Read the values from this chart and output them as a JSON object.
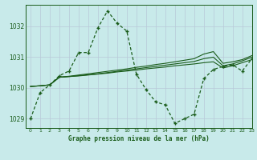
{
  "background_color": "#c8eaea",
  "grid_color": "#b8c8d8",
  "line_color": "#1a5c1a",
  "title": "Graphe pression niveau de la mer (hPa)",
  "xlim": [
    -0.5,
    23
  ],
  "ylim": [
    1028.7,
    1032.7
  ],
  "yticks": [
    1029,
    1030,
    1031,
    1032
  ],
  "xticks": [
    0,
    1,
    2,
    3,
    4,
    5,
    6,
    7,
    8,
    9,
    10,
    11,
    12,
    13,
    14,
    15,
    16,
    17,
    18,
    19,
    20,
    21,
    22,
    23
  ],
  "line1_x": [
    0,
    1,
    2,
    3,
    4,
    5,
    6,
    7,
    8,
    9,
    10,
    11,
    12,
    13,
    14,
    15,
    16,
    17,
    18,
    19,
    20,
    21,
    22,
    23
  ],
  "line1_y": [
    1029.0,
    1029.85,
    1030.1,
    1030.4,
    1030.55,
    1031.15,
    1031.15,
    1031.95,
    1032.5,
    1032.1,
    1031.85,
    1030.45,
    1029.95,
    1029.55,
    1029.45,
    1028.85,
    1029.0,
    1029.15,
    1030.3,
    1030.6,
    1030.7,
    1030.75,
    1030.55,
    1030.95
  ],
  "line2_x": [
    0,
    1,
    2,
    3,
    4,
    5,
    6,
    7,
    8,
    9,
    10,
    11,
    12,
    13,
    14,
    15,
    16,
    17,
    18,
    19,
    20,
    21,
    22,
    23
  ],
  "line2_y": [
    1030.05,
    1030.07,
    1030.1,
    1030.35,
    1030.37,
    1030.39,
    1030.42,
    1030.45,
    1030.48,
    1030.52,
    1030.55,
    1030.58,
    1030.62,
    1030.65,
    1030.68,
    1030.72,
    1030.75,
    1030.78,
    1030.82,
    1030.85,
    1030.65,
    1030.72,
    1030.82,
    1030.92
  ],
  "line3_x": [
    0,
    1,
    2,
    3,
    4,
    5,
    6,
    7,
    8,
    9,
    10,
    11,
    12,
    13,
    14,
    15,
    16,
    17,
    18,
    19,
    20,
    21,
    22,
    23
  ],
  "line3_y": [
    1030.05,
    1030.07,
    1030.1,
    1030.35,
    1030.37,
    1030.4,
    1030.43,
    1030.46,
    1030.5,
    1030.54,
    1030.58,
    1030.62,
    1030.66,
    1030.7,
    1030.74,
    1030.78,
    1030.82,
    1030.86,
    1030.95,
    1031.0,
    1030.72,
    1030.78,
    1030.88,
    1031.0
  ],
  "line4_x": [
    0,
    1,
    2,
    3,
    4,
    5,
    6,
    7,
    8,
    9,
    10,
    11,
    12,
    13,
    14,
    15,
    16,
    17,
    18,
    19,
    20,
    21,
    22,
    23
  ],
  "line4_y": [
    1030.05,
    1030.07,
    1030.1,
    1030.35,
    1030.38,
    1030.42,
    1030.46,
    1030.5,
    1030.54,
    1030.58,
    1030.62,
    1030.67,
    1030.71,
    1030.76,
    1030.8,
    1030.85,
    1030.9,
    1030.95,
    1031.1,
    1031.18,
    1030.8,
    1030.85,
    1030.92,
    1031.05
  ]
}
